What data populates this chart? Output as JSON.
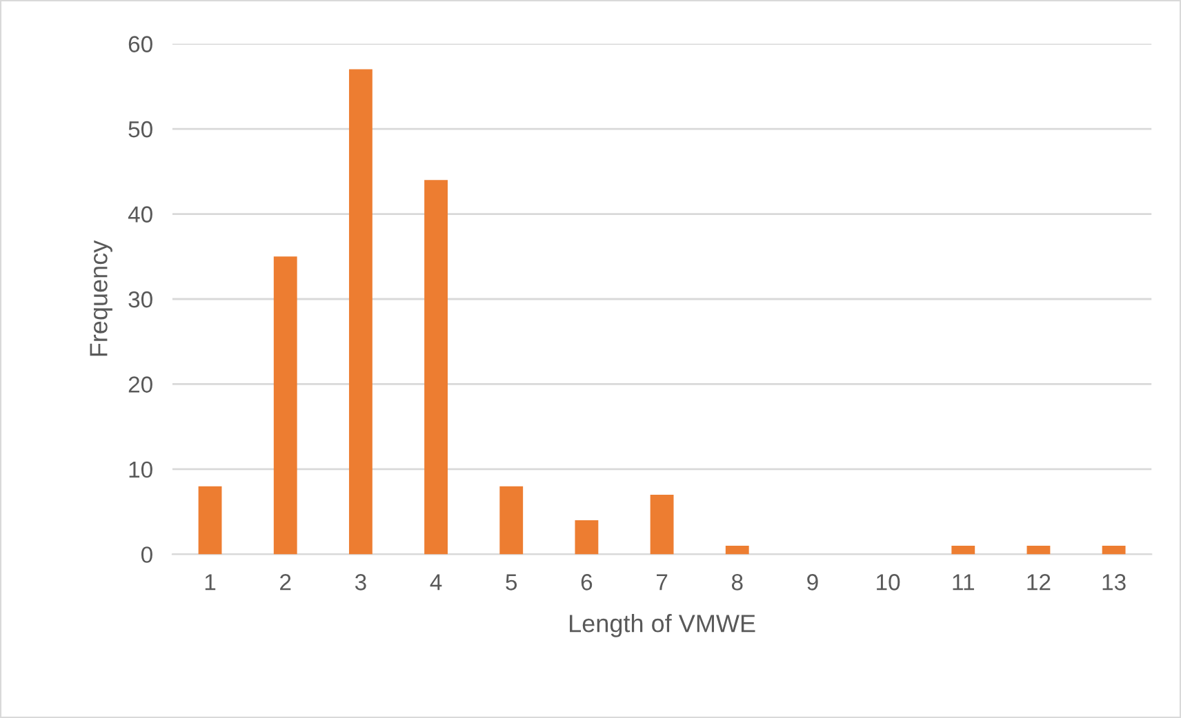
{
  "chart_data": {
    "type": "bar",
    "xlabel": "Length of VMWE",
    "ylabel": "Frequency",
    "categories": [
      "1",
      "2",
      "3",
      "4",
      "5",
      "6",
      "7",
      "8",
      "9",
      "10",
      "11",
      "12",
      "13"
    ],
    "values": [
      8,
      35,
      57,
      44,
      8,
      4,
      7,
      1,
      0,
      0,
      1,
      1,
      1
    ],
    "color": "#ed7d31",
    "ylim": [
      0,
      60
    ],
    "yticks": [
      0,
      10,
      20,
      30,
      40,
      50,
      60
    ],
    "grid": "y",
    "legend": false
  }
}
